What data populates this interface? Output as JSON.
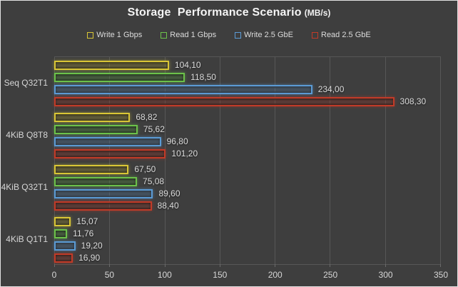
{
  "title": {
    "text": "Storage  Performance Scenario",
    "unit": "(MB/s)"
  },
  "chart_data": {
    "type": "bar",
    "orientation": "horizontal",
    "title": "Storage Performance Scenario (MB/s)",
    "categories": [
      "Seq Q32T1",
      "4KiB Q8T8",
      "4KiB Q32T1",
      "4KiB Q1T1"
    ],
    "series": [
      {
        "name": "Write 1 Gbps",
        "color": "#d9c636",
        "fill": "#4a4527",
        "values": [
          104.1,
          68.82,
          67.5,
          15.07
        ],
        "value_labels": [
          "104,10",
          "68,82",
          "67,50",
          "15,07"
        ]
      },
      {
        "name": "Read 1 Gbps",
        "color": "#6cc24a",
        "fill": "#31452c",
        "values": [
          118.5,
          75.62,
          75.08,
          11.76
        ],
        "value_labels": [
          "118,50",
          "75,62",
          "75,08",
          "11,76"
        ]
      },
      {
        "name": "Write 2.5 GbE",
        "color": "#5b9bd5",
        "fill": "#3c4754",
        "values": [
          234.0,
          96.8,
          89.6,
          19.2
        ],
        "value_labels": [
          "234,00",
          "96,80",
          "89,60",
          "19,20"
        ]
      },
      {
        "name": "Read 2.5 GbE",
        "color": "#c23b28",
        "fill": "#4c2d28",
        "values": [
          308.3,
          101.2,
          88.4,
          16.9
        ],
        "value_labels": [
          "308,30",
          "101,20",
          "88,40",
          "16,90"
        ]
      }
    ],
    "xlim": [
      0,
      350
    ],
    "xticks": [
      "0",
      "50",
      "100",
      "150",
      "200",
      "250",
      "300",
      "350"
    ],
    "grid": true,
    "legend_position": "top",
    "background": "#3e3e3e",
    "gridline_color": "#575757",
    "text_color": "#d6d6d6"
  }
}
